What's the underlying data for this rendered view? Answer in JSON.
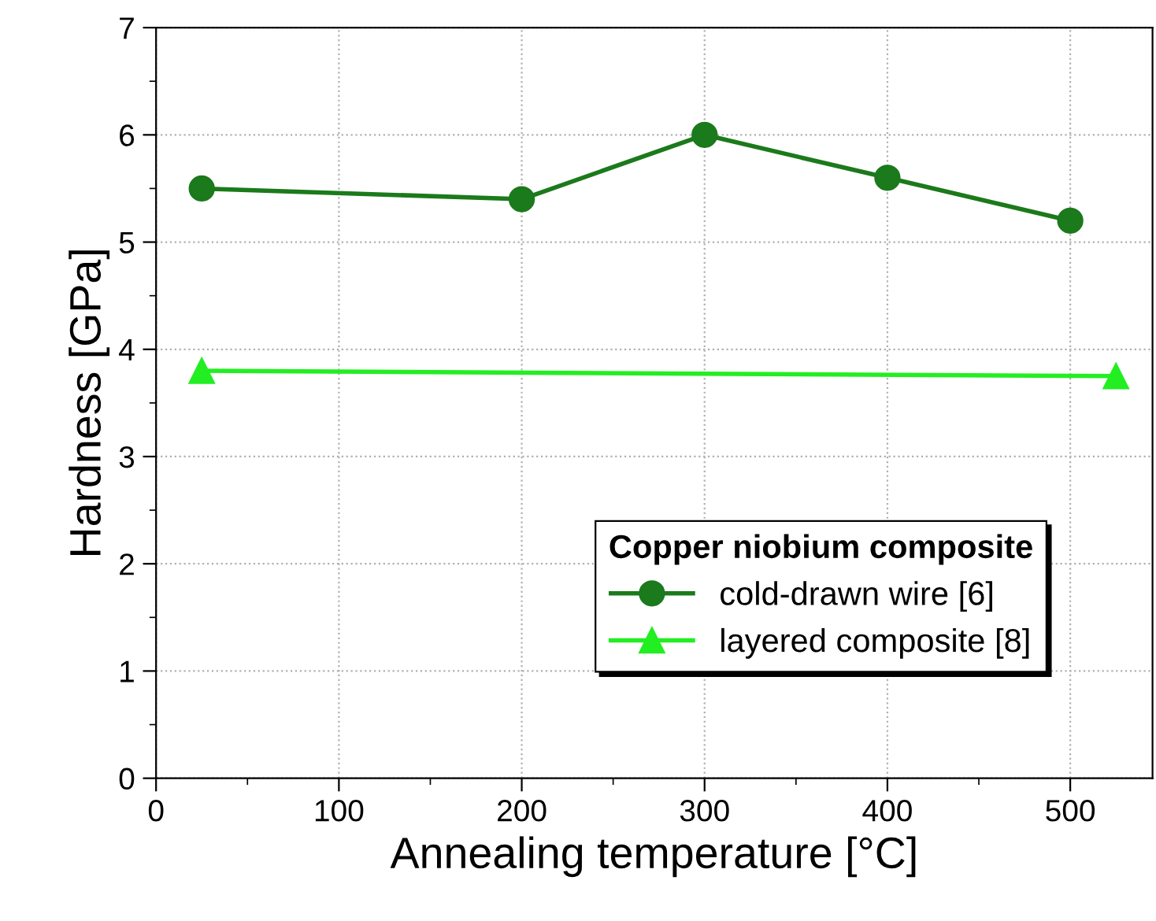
{
  "chart_data": {
    "type": "line",
    "xlabel": "Annealing temperature [°C]",
    "ylabel": "Hardness [GPa]",
    "legend_title": "Copper niobium composite",
    "series": [
      {
        "name": "cold-drawn wire [6]",
        "color": "#1b7a1b",
        "marker": "circle",
        "x": [
          25,
          200,
          300,
          400,
          500
        ],
        "values": [
          5.5,
          5.4,
          6.0,
          5.6,
          5.2
        ]
      },
      {
        "name": "layered composite [8]",
        "color": "#22ee22",
        "marker": "triangle",
        "x": [
          25,
          525
        ],
        "values": [
          3.8,
          3.75
        ]
      }
    ],
    "xlim": [
      0,
      545
    ],
    "xticks": [
      0,
      100,
      200,
      300,
      400,
      500
    ],
    "ylim": [
      0,
      7
    ],
    "yticks": [
      0,
      1,
      2,
      3,
      4,
      5,
      6,
      7
    ],
    "grid": true,
    "legend": "bottom right",
    "line_style": "solid"
  }
}
